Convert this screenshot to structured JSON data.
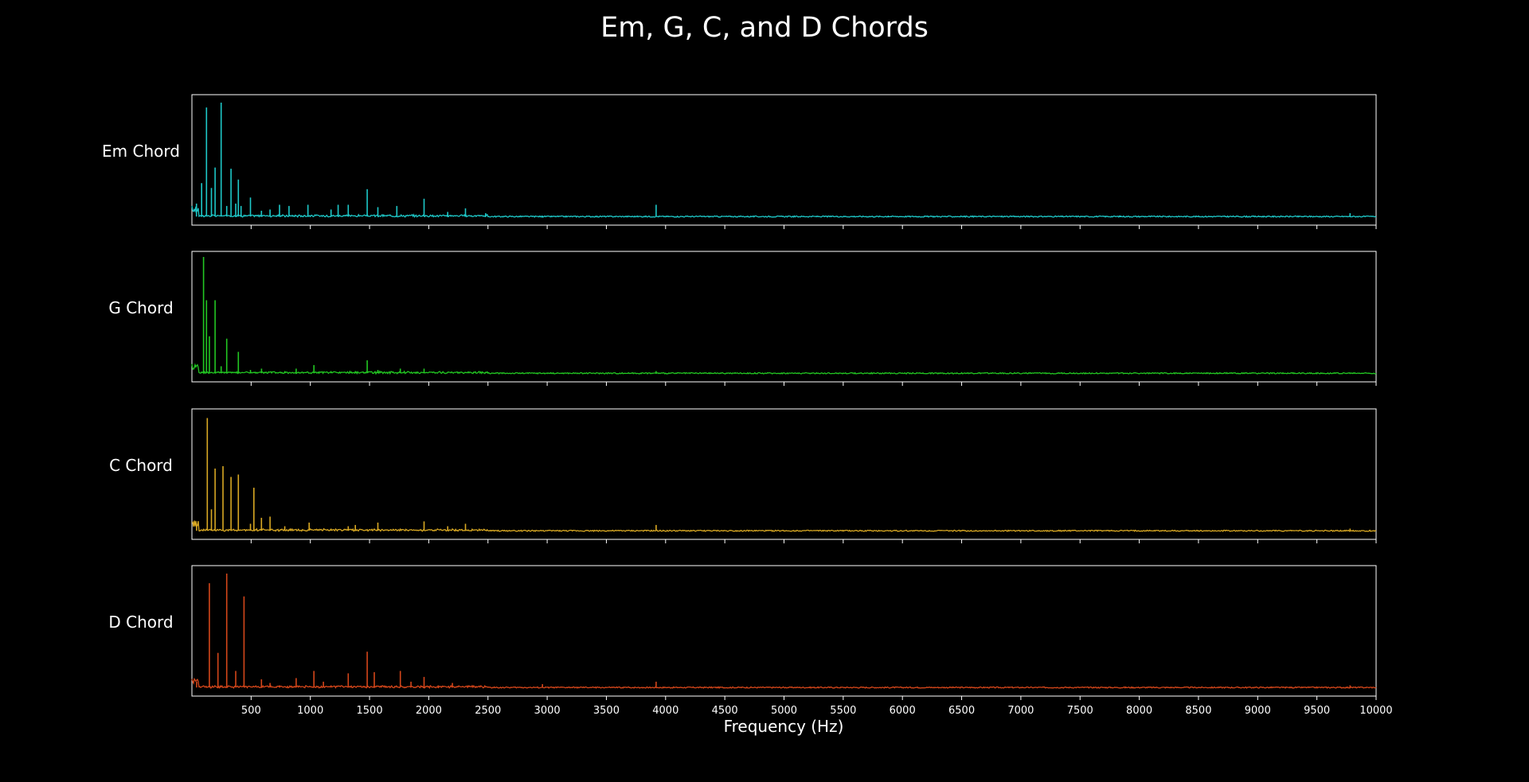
{
  "chart_data": {
    "type": "line",
    "title": "Em, G, C, and D Chords",
    "xlabel": "Frequency (Hz)",
    "xlim": [
      0,
      10000
    ],
    "x_ticks": [
      500,
      1000,
      1500,
      2000,
      2500,
      3000,
      3500,
      4000,
      4500,
      5000,
      5500,
      6000,
      6500,
      7000,
      7500,
      8000,
      8500,
      9000,
      9500,
      10000
    ],
    "grid": false,
    "panels": [
      {
        "label": "Em Chord",
        "color": "#1ec8c8",
        "ylim": [
          0,
          1.0
        ],
        "baseline": 0.012,
        "peaks": [
          [
            38,
            0.12
          ],
          [
            82,
            0.29
          ],
          [
            123,
            0.92
          ],
          [
            165,
            0.25
          ],
          [
            196,
            0.42
          ],
          [
            247,
            0.96
          ],
          [
            294,
            0.1
          ],
          [
            330,
            0.41
          ],
          [
            370,
            0.12
          ],
          [
            392,
            0.32
          ],
          [
            415,
            0.1
          ],
          [
            494,
            0.17
          ],
          [
            587,
            0.06
          ],
          [
            660,
            0.07
          ],
          [
            740,
            0.11
          ],
          [
            820,
            0.1
          ],
          [
            980,
            0.11
          ],
          [
            1175,
            0.07
          ],
          [
            1235,
            0.11
          ],
          [
            1320,
            0.11
          ],
          [
            1480,
            0.24
          ],
          [
            1570,
            0.09
          ],
          [
            1730,
            0.1
          ],
          [
            1960,
            0.16
          ],
          [
            2160,
            0.05
          ],
          [
            2310,
            0.08
          ],
          [
            2480,
            0.04
          ],
          [
            2960,
            0.02
          ],
          [
            3920,
            0.11
          ],
          [
            5880,
            0.02
          ],
          [
            7840,
            0.02
          ],
          [
            9780,
            0.04
          ]
        ]
      },
      {
        "label": "G Chord",
        "color": "#22c722",
        "ylim": [
          0,
          1.0
        ],
        "baseline": 0.012,
        "peaks": [
          [
            98,
            0.98
          ],
          [
            123,
            0.62
          ],
          [
            147,
            0.32
          ],
          [
            196,
            0.62
          ],
          [
            247,
            0.07
          ],
          [
            294,
            0.3
          ],
          [
            392,
            0.19
          ],
          [
            494,
            0.04
          ],
          [
            588,
            0.05
          ],
          [
            784,
            0.03
          ],
          [
            880,
            0.05
          ],
          [
            1030,
            0.08
          ],
          [
            1175,
            0.03
          ],
          [
            1380,
            0.03
          ],
          [
            1480,
            0.12
          ],
          [
            1570,
            0.04
          ],
          [
            1760,
            0.05
          ],
          [
            1960,
            0.05
          ],
          [
            3920,
            0.03
          ]
        ]
      },
      {
        "label": "C Chord",
        "color": "#d8a823",
        "ylim": [
          0,
          1.0
        ],
        "baseline": 0.012,
        "peaks": [
          [
            40,
            0.06
          ],
          [
            130,
            0.95
          ],
          [
            165,
            0.19
          ],
          [
            196,
            0.53
          ],
          [
            262,
            0.55
          ],
          [
            330,
            0.46
          ],
          [
            392,
            0.48
          ],
          [
            523,
            0.37
          ],
          [
            494,
            0.07
          ],
          [
            587,
            0.12
          ],
          [
            660,
            0.13
          ],
          [
            784,
            0.05
          ],
          [
            830,
            0.03
          ],
          [
            990,
            0.08
          ],
          [
            1175,
            0.03
          ],
          [
            1320,
            0.05
          ],
          [
            1380,
            0.06
          ],
          [
            1570,
            0.08
          ],
          [
            1960,
            0.09
          ],
          [
            2160,
            0.05
          ],
          [
            2310,
            0.07
          ],
          [
            3920,
            0.06
          ],
          [
            9780,
            0.03
          ]
        ]
      },
      {
        "label": "D Chord",
        "color": "#d4461a",
        "ylim": [
          0,
          1.0
        ],
        "baseline": 0.012,
        "peaks": [
          [
            40,
            0.06
          ],
          [
            147,
            0.88
          ],
          [
            220,
            0.3
          ],
          [
            294,
            0.96
          ],
          [
            370,
            0.15
          ],
          [
            440,
            0.77
          ],
          [
            587,
            0.08
          ],
          [
            660,
            0.05
          ],
          [
            740,
            0.03
          ],
          [
            880,
            0.09
          ],
          [
            1030,
            0.15
          ],
          [
            1110,
            0.06
          ],
          [
            1175,
            0.03
          ],
          [
            1320,
            0.13
          ],
          [
            1480,
            0.31
          ],
          [
            1540,
            0.14
          ],
          [
            1760,
            0.15
          ],
          [
            1850,
            0.06
          ],
          [
            1960,
            0.1
          ],
          [
            2080,
            0.03
          ],
          [
            2200,
            0.05
          ],
          [
            2960,
            0.04
          ],
          [
            3920,
            0.06
          ],
          [
            9780,
            0.03
          ]
        ]
      }
    ]
  }
}
